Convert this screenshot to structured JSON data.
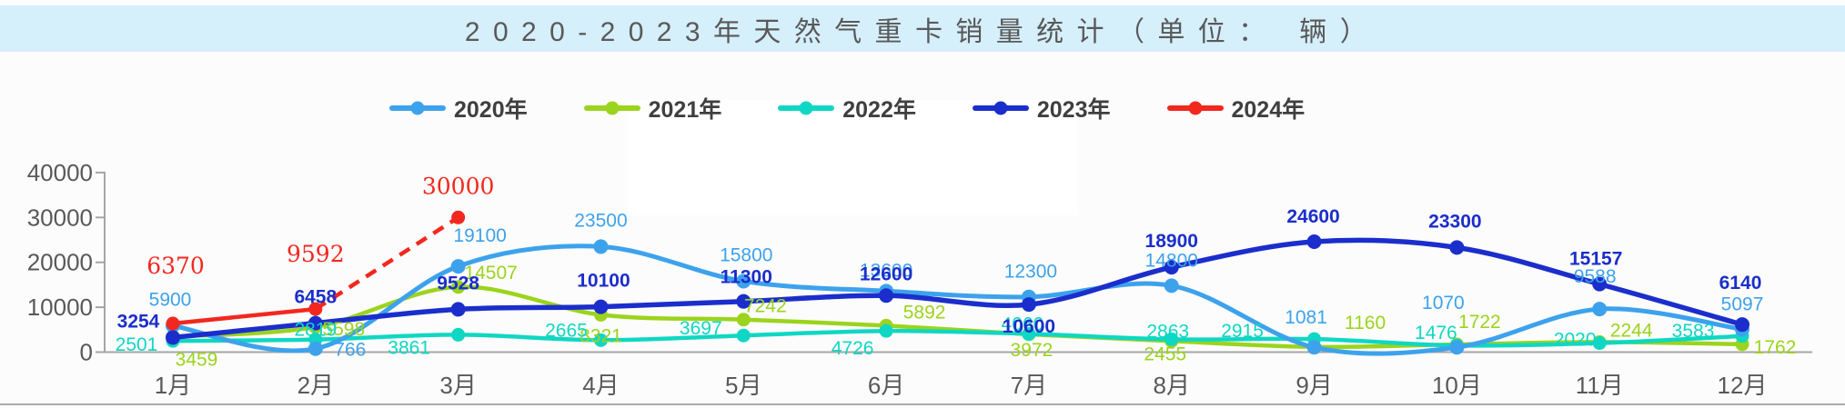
{
  "title": {
    "text": "2020-2023年天然气重卡销量统计（单位： 辆）"
  },
  "legend": {
    "items": [
      "2020年",
      "2021年",
      "2022年",
      "2023年",
      "2024年"
    ]
  },
  "colors": {
    "series_2020": "#3da2ec",
    "series_2021": "#9bd41c",
    "series_2022": "#0fd7c3",
    "series_2023": "#1b2ecc",
    "series_2024": "#f2281e",
    "title_band_bg": "#d5effb",
    "axis_text": "#595959"
  },
  "chart_data": {
    "type": "line",
    "title": "2020-2023年天然气重卡销量统计（单位：辆）",
    "categories": [
      "1月",
      "2月",
      "3月",
      "4月",
      "5月",
      "6月",
      "7月",
      "8月",
      "9月",
      "10月",
      "11月",
      "12月"
    ],
    "series": [
      {
        "name": "2020年",
        "color": "#3da2ec",
        "values": [
          5900,
          766,
          19100,
          23500,
          15800,
          13600,
          12300,
          14800,
          1081,
          1070,
          9588,
          5097
        ]
      },
      {
        "name": "2021年",
        "color": "#9bd41c",
        "values": [
          3459,
          5598,
          14507,
          8321,
          7242,
          5892,
          3972,
          2455,
          1160,
          1722,
          2244,
          1762
        ]
      },
      {
        "name": "2022年",
        "color": "#0fd7c3",
        "values": [
          2501,
          2819,
          3861,
          2665,
          3697,
          4726,
          4060,
          2863,
          2915,
          1476,
          2020,
          3583
        ]
      },
      {
        "name": "2023年",
        "color": "#1b2ecc",
        "values": [
          3254,
          6458,
          9528,
          10100,
          11300,
          12600,
          10600,
          18900,
          24600,
          23300,
          15157,
          6140
        ]
      },
      {
        "name": "2024年",
        "color": "#f2281e",
        "values": [
          6370,
          9592,
          30000
        ],
        "dashed_from_index": 1
      }
    ],
    "ylim": [
      0,
      40000
    ],
    "yticks": [
      0,
      10000,
      20000,
      30000,
      40000
    ],
    "grid": false,
    "legend_position": "top"
  }
}
